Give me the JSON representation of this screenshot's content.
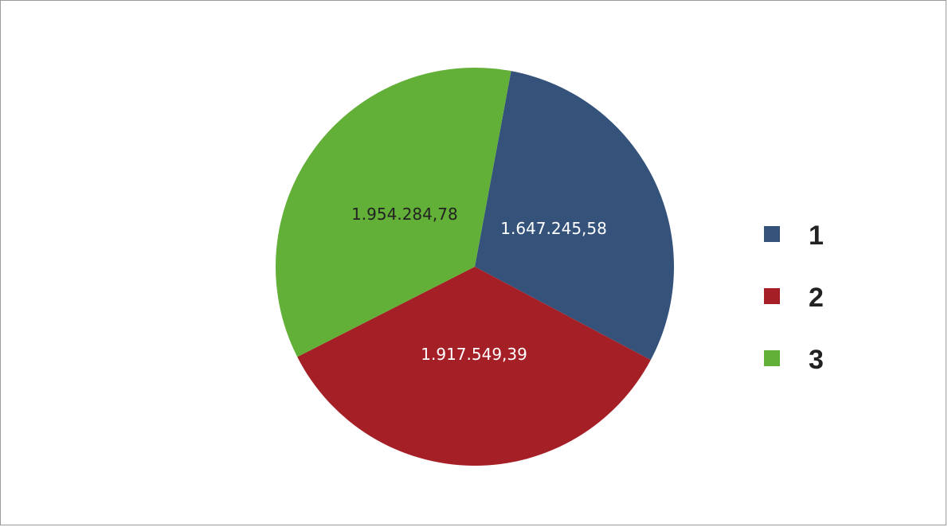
{
  "chart_data": {
    "type": "pie",
    "categories": [
      "1",
      "2",
      "3"
    ],
    "values": [
      1647245.58,
      1917549.39,
      1954284.78
    ],
    "value_labels": [
      "1.647.245,58",
      "1.917.549,39",
      "1.954.284,78"
    ],
    "colors": [
      "#34527a",
      "#a51f26",
      "#62b037"
    ],
    "label_colors": [
      "#ffffff",
      "#ffffff",
      "#222222"
    ],
    "legend": {
      "position": "right",
      "items": [
        {
          "label": "1",
          "color": "#34527a"
        },
        {
          "label": "2",
          "color": "#a51f26"
        },
        {
          "label": "3",
          "color": "#62b037"
        }
      ]
    },
    "title": "",
    "xlabel": "",
    "ylabel": ""
  }
}
